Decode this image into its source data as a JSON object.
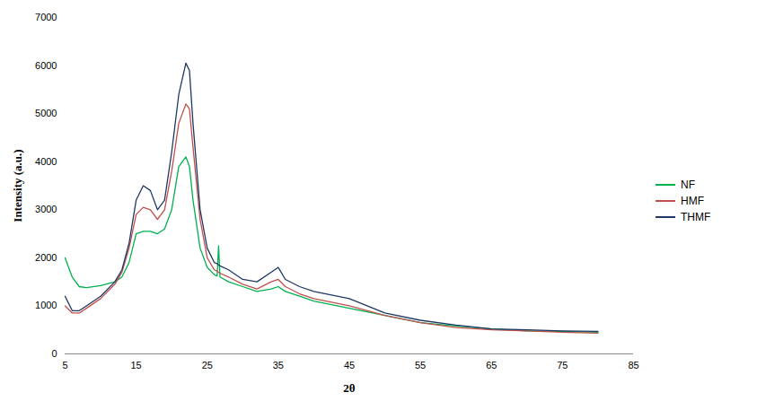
{
  "chart_data": {
    "type": "line",
    "x_label": "2θ",
    "y_label": "Intensity (a.u.)",
    "x": [
      5,
      6,
      7,
      8,
      10,
      12,
      13,
      14,
      15,
      16,
      17,
      18,
      19,
      20,
      21,
      22,
      22.5,
      23,
      24,
      25,
      26,
      26.4,
      26.6,
      26.8,
      28,
      30,
      32,
      34,
      35,
      36,
      38,
      40,
      45,
      50,
      55,
      60,
      65,
      70,
      75,
      80
    ],
    "series": [
      {
        "name": "NF",
        "color": "#00b050",
        "values": [
          2000,
          1600,
          1400,
          1380,
          1420,
          1500,
          1600,
          1900,
          2500,
          2550,
          2550,
          2500,
          2600,
          3000,
          3900,
          4100,
          3900,
          3200,
          2200,
          1800,
          1650,
          1620,
          2250,
          1600,
          1500,
          1400,
          1300,
          1350,
          1400,
          1300,
          1200,
          1100,
          950,
          800,
          650,
          580,
          520,
          480,
          470,
          450
        ]
      },
      {
        "name": "HMF",
        "color": "#c0504d",
        "values": [
          1000,
          850,
          850,
          950,
          1150,
          1450,
          1700,
          2200,
          2900,
          3050,
          3000,
          2800,
          3000,
          3800,
          4800,
          5200,
          5100,
          4300,
          2800,
          2000,
          1750,
          1720,
          1700,
          1680,
          1600,
          1450,
          1350,
          1500,
          1550,
          1400,
          1250,
          1150,
          1000,
          800,
          650,
          550,
          500,
          480,
          450,
          430
        ]
      },
      {
        "name": "THMF",
        "color": "#1f3864",
        "values": [
          1200,
          900,
          900,
          1000,
          1200,
          1500,
          1750,
          2300,
          3200,
          3500,
          3400,
          3000,
          3200,
          4200,
          5400,
          6050,
          5900,
          4800,
          3000,
          2200,
          1900,
          1880,
          1850,
          1830,
          1750,
          1550,
          1500,
          1700,
          1800,
          1550,
          1400,
          1300,
          1150,
          850,
          700,
          600,
          520,
          500,
          480,
          470
        ]
      }
    ],
    "xlim": [
      5,
      85
    ],
    "xticks": [
      5,
      15,
      25,
      35,
      45,
      55,
      65,
      75,
      85
    ],
    "ylim": [
      0,
      7000
    ],
    "yticks": [
      0,
      1000,
      2000,
      3000,
      4000,
      5000,
      6000,
      7000
    ],
    "grid": false,
    "legend": "right"
  }
}
